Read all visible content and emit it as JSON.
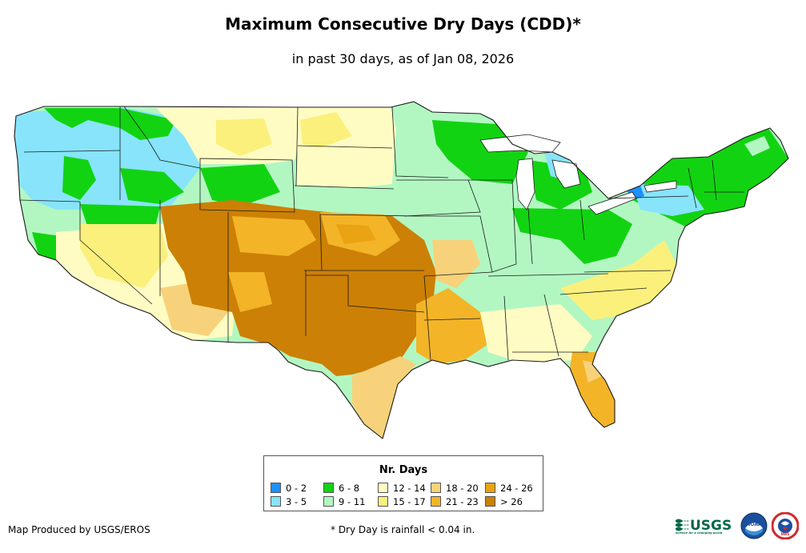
{
  "header": {
    "title": "Maximum Consecutive Dry Days (CDD)*",
    "subtitle": "in past 30 days, as of Jan 08, 2026"
  },
  "legend": {
    "title": "Nr. Days",
    "items": [
      {
        "label": "0 - 2",
        "color": "#1e90ff"
      },
      {
        "label": "3 - 5",
        "color": "#87e4fb"
      },
      {
        "label": "6 - 8",
        "color": "#12d312"
      },
      {
        "label": "9 - 11",
        "color": "#b2f7c2"
      },
      {
        "label": "12 - 14",
        "color": "#fffcc3"
      },
      {
        "label": "15 - 17",
        "color": "#fbf07c"
      },
      {
        "label": "18 - 20",
        "color": "#f7d27a"
      },
      {
        "label": "21 - 23",
        "color": "#f3b428"
      },
      {
        "label": "24 - 26",
        "color": "#eaa313"
      },
      {
        "label": "> 26",
        "color": "#cc8005"
      }
    ]
  },
  "footer": {
    "credit": "Map Produced by USGS/EROS",
    "footnote": "* Dry Day is rainfall < 0.04 in.",
    "logos": {
      "usgs": "USGS",
      "usgs_tagline": "science for a changing world",
      "noaa": "NOAA",
      "nws": "NWS"
    }
  },
  "map": {
    "region": "Contiguous United States",
    "nation_fill": "#b2f7c2",
    "boundary_color": "#1a1a1a",
    "water_color": "#ffffff"
  }
}
